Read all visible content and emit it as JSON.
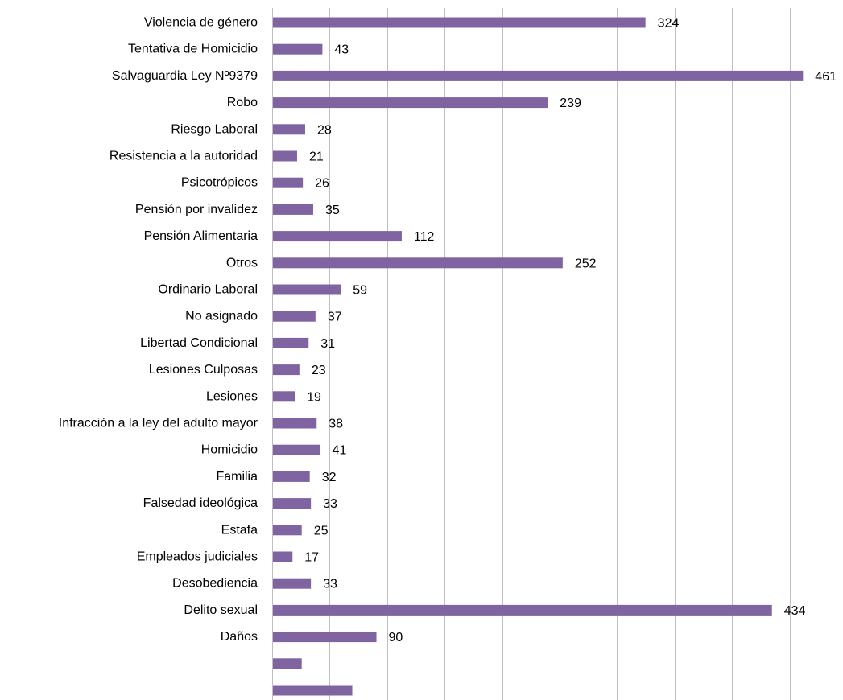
{
  "chart_data": {
    "type": "bar",
    "orientation": "horizontal",
    "categories": [
      "Violencia de género",
      "Tentativa de Homicidio",
      "Salvaguardia Ley Nº9379",
      "Robo",
      "Riesgo Laboral",
      "Resistencia a la autoridad",
      "Psicotrópicos",
      "Pensión por invalidez",
      "Pensión Alimentaria",
      "Otros",
      "Ordinario Laboral",
      "No asignado",
      "Libertad Condicional",
      "Lesiones Culposas",
      "Lesiones",
      "Infracción a la ley del adulto mayor",
      "Homicidio",
      "Familia",
      "Falsedad ideológica",
      "Estafa",
      "Empleados judiciales",
      "Desobediencia",
      "Delito sexual",
      "Daños",
      "",
      ""
    ],
    "values": [
      324,
      43,
      461,
      239,
      28,
      21,
      26,
      35,
      112,
      252,
      59,
      37,
      31,
      23,
      19,
      38,
      41,
      32,
      33,
      25,
      17,
      33,
      434,
      90,
      25,
      69
    ],
    "value_labels_visible": [
      true,
      true,
      true,
      true,
      true,
      true,
      true,
      true,
      true,
      true,
      true,
      true,
      true,
      true,
      true,
      true,
      true,
      true,
      true,
      true,
      true,
      true,
      true,
      true,
      false,
      false
    ],
    "title": "",
    "xlabel": "",
    "ylabel": "",
    "xlim": [
      0,
      500
    ],
    "x_gridlines": [
      0,
      50,
      100,
      150,
      200,
      250,
      300,
      350,
      400,
      450,
      500
    ],
    "x_tick_labels_visible": false,
    "grid": true,
    "legend": "none",
    "bar_color": "#8064a2",
    "grid_color": "#bfbfbf"
  }
}
